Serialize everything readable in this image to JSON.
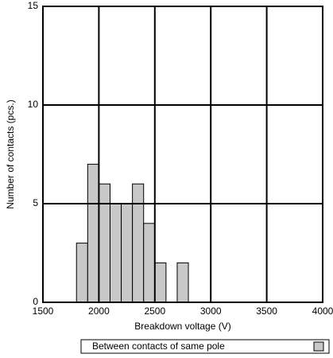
{
  "chart_data": {
    "type": "histogram",
    "x_label": "Breakdown voltage (V)",
    "y_label": "Number of contacts (pcs.)",
    "bins": [
      1800,
      1900,
      2000,
      2100,
      2200,
      2300,
      2400,
      2500,
      2600,
      2700,
      2800
    ],
    "series": [
      {
        "name": "Between contacts of same pole",
        "color": "#c8c8c8",
        "values": [
          3,
          7,
          6,
          5,
          5,
          6,
          4,
          2,
          0,
          2
        ]
      }
    ],
    "xlim": [
      1500,
      4000
    ],
    "xticks": [
      1500,
      2000,
      2500,
      3000,
      3500,
      4000
    ],
    "ylim": [
      0,
      15
    ],
    "yticks": [
      0,
      5,
      10,
      15
    ],
    "grid": true,
    "legend": "bottom"
  }
}
